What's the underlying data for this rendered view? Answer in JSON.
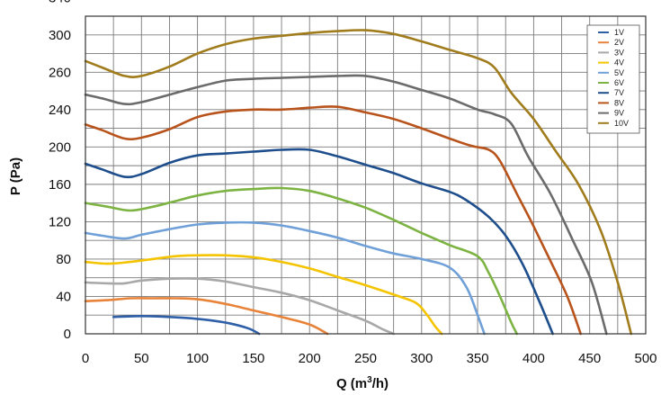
{
  "chart_data": {
    "type": "line",
    "xlabel": "Q (m",
    "xlabel_sup": "3",
    "xlabel_suffix": "/h)",
    "ylabel": "P (Pa)",
    "xlim": [
      0,
      500
    ],
    "ylim": [
      0,
      340
    ],
    "x_ticks": [
      "0",
      "50",
      "100",
      "150",
      "200",
      "250",
      "300",
      "350",
      "400",
      "450",
      "500"
    ],
    "y_ticks": [
      "0",
      "40",
      "80",
      "120",
      "160",
      "200",
      "240",
      "260",
      "300",
      "340"
    ],
    "grid": true,
    "legend_position": "top-right",
    "series": [
      {
        "name": "1V",
        "color": "#2f5fa7",
        "points": [
          [
            25,
            18
          ],
          [
            50,
            19
          ],
          [
            75,
            18
          ],
          [
            100,
            16
          ],
          [
            125,
            12
          ],
          [
            145,
            6
          ],
          [
            155,
            0
          ]
        ]
      },
      {
        "name": "2V",
        "color": "#e8833a",
        "points": [
          [
            0,
            35
          ],
          [
            20,
            36
          ],
          [
            40,
            38
          ],
          [
            60,
            38
          ],
          [
            80,
            38
          ],
          [
            100,
            37
          ],
          [
            125,
            32
          ],
          [
            150,
            25
          ],
          [
            175,
            18
          ],
          [
            200,
            10
          ],
          [
            216,
            0
          ]
        ]
      },
      {
        "name": "3V",
        "color": "#a8a8a8",
        "points": [
          [
            0,
            55
          ],
          [
            20,
            54
          ],
          [
            35,
            54
          ],
          [
            50,
            57
          ],
          [
            75,
            59
          ],
          [
            100,
            59
          ],
          [
            125,
            56
          ],
          [
            150,
            50
          ],
          [
            175,
            44
          ],
          [
            200,
            36
          ],
          [
            225,
            25
          ],
          [
            250,
            14
          ],
          [
            265,
            5
          ],
          [
            275,
            0
          ]
        ]
      },
      {
        "name": "4V",
        "color": "#f5c400",
        "points": [
          [
            0,
            77
          ],
          [
            20,
            75
          ],
          [
            40,
            77
          ],
          [
            60,
            80
          ],
          [
            80,
            83
          ],
          [
            100,
            84
          ],
          [
            125,
            84
          ],
          [
            150,
            82
          ],
          [
            175,
            77
          ],
          [
            200,
            70
          ],
          [
            225,
            61
          ],
          [
            250,
            52
          ],
          [
            275,
            42
          ],
          [
            295,
            33
          ],
          [
            305,
            20
          ],
          [
            312,
            8
          ],
          [
            318,
            0
          ]
        ]
      },
      {
        "name": "5V",
        "color": "#6fa0d8",
        "points": [
          [
            0,
            108
          ],
          [
            15,
            105
          ],
          [
            35,
            102
          ],
          [
            50,
            106
          ],
          [
            75,
            112
          ],
          [
            100,
            117
          ],
          [
            125,
            119
          ],
          [
            150,
            119
          ],
          [
            175,
            116
          ],
          [
            200,
            110
          ],
          [
            225,
            103
          ],
          [
            250,
            94
          ],
          [
            275,
            86
          ],
          [
            300,
            80
          ],
          [
            325,
            71
          ],
          [
            340,
            50
          ],
          [
            350,
            20
          ],
          [
            356,
            0
          ]
        ]
      },
      {
        "name": "6V",
        "color": "#7cb342",
        "points": [
          [
            0,
            140
          ],
          [
            20,
            136
          ],
          [
            40,
            132
          ],
          [
            60,
            136
          ],
          [
            80,
            142
          ],
          [
            100,
            148
          ],
          [
            125,
            153
          ],
          [
            150,
            155
          ],
          [
            175,
            156
          ],
          [
            200,
            153
          ],
          [
            225,
            145
          ],
          [
            250,
            135
          ],
          [
            275,
            122
          ],
          [
            300,
            108
          ],
          [
            325,
            95
          ],
          [
            350,
            83
          ],
          [
            360,
            65
          ],
          [
            370,
            40
          ],
          [
            380,
            12
          ],
          [
            385,
            0
          ]
        ]
      },
      {
        "name": "7V",
        "color": "#1e4e8c",
        "points": [
          [
            0,
            182
          ],
          [
            15,
            176
          ],
          [
            35,
            168
          ],
          [
            50,
            171
          ],
          [
            75,
            183
          ],
          [
            100,
            191
          ],
          [
            125,
            193
          ],
          [
            150,
            195
          ],
          [
            175,
            197
          ],
          [
            200,
            197
          ],
          [
            225,
            190
          ],
          [
            250,
            181
          ],
          [
            275,
            172
          ],
          [
            300,
            161
          ],
          [
            325,
            152
          ],
          [
            340,
            143
          ],
          [
            360,
            125
          ],
          [
            375,
            105
          ],
          [
            390,
            75
          ],
          [
            405,
            35
          ],
          [
            417,
            0
          ]
        ]
      },
      {
        "name": "8V",
        "color": "#b8531c",
        "points": [
          [
            0,
            224
          ],
          [
            15,
            218
          ],
          [
            35,
            209
          ],
          [
            50,
            210
          ],
          [
            75,
            219
          ],
          [
            100,
            232
          ],
          [
            125,
            238
          ],
          [
            150,
            240
          ],
          [
            175,
            240
          ],
          [
            200,
            242
          ],
          [
            225,
            243
          ],
          [
            250,
            237
          ],
          [
            275,
            230
          ],
          [
            300,
            220
          ],
          [
            325,
            209
          ],
          [
            345,
            201
          ],
          [
            360,
            197
          ],
          [
            370,
            185
          ],
          [
            385,
            150
          ],
          [
            400,
            115
          ],
          [
            415,
            78
          ],
          [
            430,
            40
          ],
          [
            442,
            0
          ]
        ]
      },
      {
        "name": "9V",
        "color": "#6b6b6b",
        "points": [
          [
            0,
            256
          ],
          [
            15,
            252
          ],
          [
            35,
            246
          ],
          [
            50,
            248
          ],
          [
            75,
            256
          ],
          [
            100,
            264
          ],
          [
            125,
            271
          ],
          [
            150,
            273
          ],
          [
            175,
            274
          ],
          [
            200,
            275
          ],
          [
            225,
            276
          ],
          [
            250,
            276
          ],
          [
            275,
            270
          ],
          [
            300,
            261
          ],
          [
            325,
            252
          ],
          [
            350,
            240
          ],
          [
            365,
            235
          ],
          [
            380,
            225
          ],
          [
            395,
            190
          ],
          [
            415,
            150
          ],
          [
            435,
            100
          ],
          [
            452,
            55
          ],
          [
            465,
            0
          ]
        ]
      },
      {
        "name": "10V",
        "color": "#a07c1c",
        "points": [
          [
            0,
            292
          ],
          [
            15,
            285
          ],
          [
            35,
            276
          ],
          [
            50,
            276
          ],
          [
            75,
            286
          ],
          [
            100,
            300
          ],
          [
            125,
            310
          ],
          [
            150,
            316
          ],
          [
            175,
            319
          ],
          [
            200,
            322
          ],
          [
            225,
            324
          ],
          [
            250,
            325
          ],
          [
            275,
            321
          ],
          [
            300,
            313
          ],
          [
            325,
            304
          ],
          [
            350,
            295
          ],
          [
            365,
            285
          ],
          [
            380,
            258
          ],
          [
            400,
            230
          ],
          [
            420,
            195
          ],
          [
            440,
            160
          ],
          [
            460,
            110
          ],
          [
            475,
            55
          ],
          [
            487,
            0
          ]
        ]
      }
    ]
  }
}
